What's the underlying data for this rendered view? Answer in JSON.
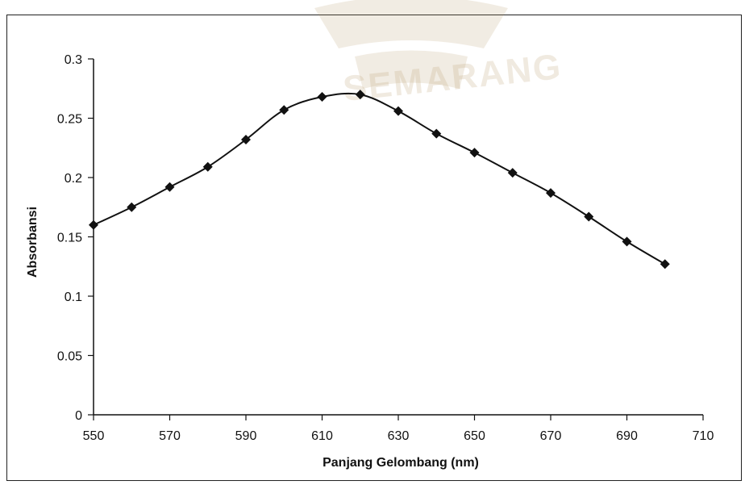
{
  "watermark_text": "SEMARANG",
  "chart_data": {
    "type": "line",
    "title": "",
    "xlabel": "Panjang Gelombang (nm)",
    "ylabel": "Absorbansi",
    "xlim": [
      550,
      710
    ],
    "ylim": [
      0,
      0.3
    ],
    "x_ticks": [
      "550",
      "570",
      "590",
      "610",
      "630",
      "650",
      "670",
      "690",
      "710"
    ],
    "y_ticks": [
      "0",
      "0.05",
      "0.1",
      "0.15",
      "0.2",
      "0.25",
      "0.3"
    ],
    "grid": false,
    "legend": "none",
    "series": [
      {
        "color": "#111111",
        "marker": "diamond",
        "x": [
          550,
          560,
          570,
          580,
          590,
          600,
          610,
          620,
          630,
          640,
          650,
          660,
          670,
          680,
          690,
          700
        ],
        "y": [
          0.16,
          0.175,
          0.192,
          0.209,
          0.232,
          0.257,
          0.268,
          0.27,
          0.256,
          0.237,
          0.221,
          0.204,
          0.187,
          0.167,
          0.146,
          0.127
        ]
      }
    ]
  }
}
